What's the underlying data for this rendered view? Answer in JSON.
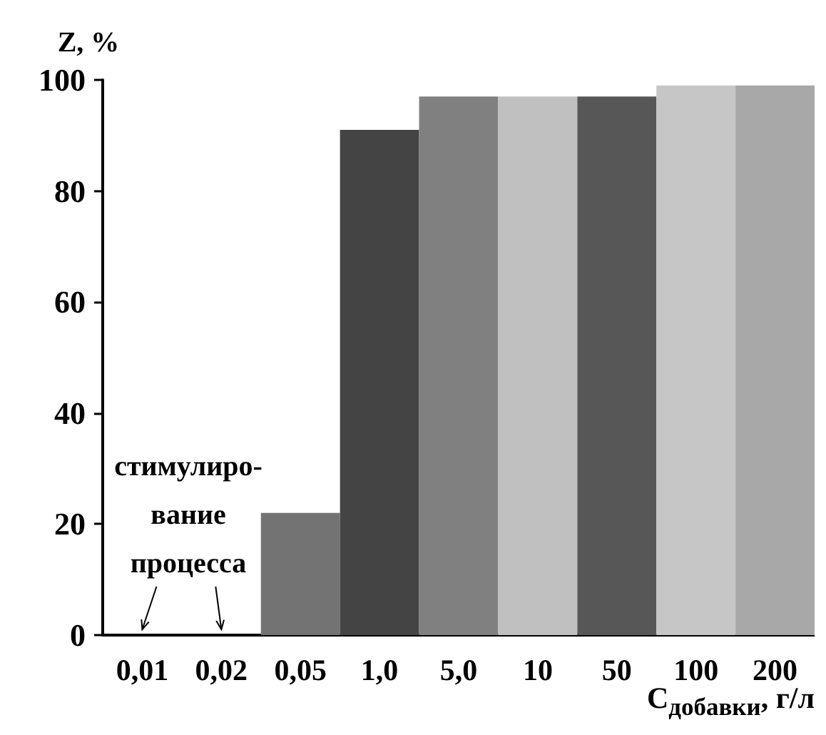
{
  "chart_data": {
    "type": "bar",
    "ylabel": "Z, %",
    "xlabel": "C$_{добавки}$, г/л",
    "categories": [
      "0,01",
      "0,02",
      "0,05",
      "1,0",
      "5,0",
      "10",
      "50",
      "100",
      "200"
    ],
    "values": [
      0,
      0,
      22,
      91,
      97,
      97,
      97,
      99,
      99
    ],
    "colors": [
      "#737373",
      "#737373",
      "#737373",
      "#444444",
      "#808080",
      "#c0c0c0",
      "#575757",
      "#c6c6c6",
      "#a8a8a8"
    ],
    "ylim": [
      0,
      100
    ],
    "yticks": [
      0,
      20,
      40,
      60,
      80,
      100
    ],
    "grid": false,
    "annotations": [
      "стимулиро-\nвание\nпроцесса"
    ]
  }
}
